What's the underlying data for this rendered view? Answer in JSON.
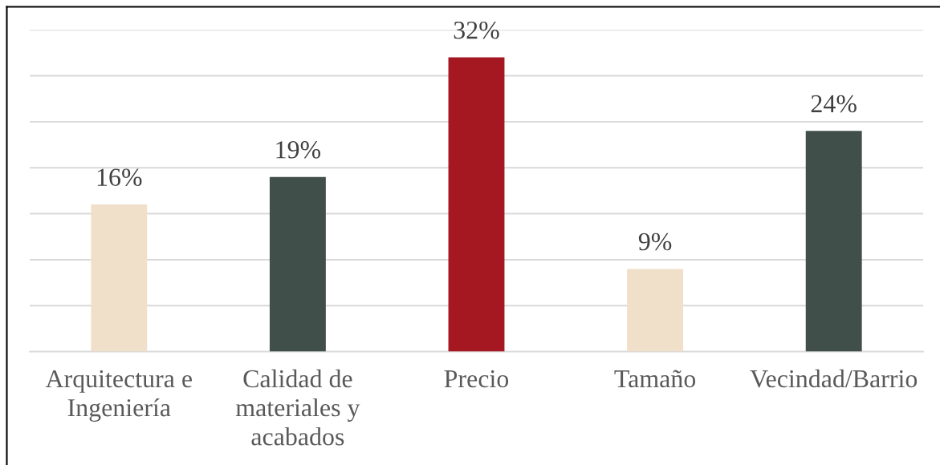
{
  "chart_data": {
    "type": "bar",
    "categories": [
      "Arquitectura e Ingeniería",
      "Calidad de materiales y acabados",
      "Precio",
      "Tamaño",
      "Vecindad/Barrio"
    ],
    "values": [
      16,
      19,
      32,
      9,
      24
    ],
    "value_labels": [
      "16%",
      "19%",
      "32%",
      "9%",
      "24%"
    ],
    "colors": [
      "#f0e0ca",
      "#414f4a",
      "#a51822",
      "#f0e0ca",
      "#414f4a"
    ],
    "ylim": [
      0,
      35
    ],
    "yticks": [
      {
        "value": 0,
        "label": null
      },
      {
        "value": 5,
        "label": null
      },
      {
        "value": 10,
        "label": null
      },
      {
        "value": 15,
        "label": null
      },
      {
        "value": 20,
        "label": null
      },
      {
        "value": 25,
        "label": null
      },
      {
        "value": 30,
        "label": null
      },
      {
        "value": 35,
        "label": null
      }
    ],
    "grid": "y",
    "tick_labels": "x"
  }
}
